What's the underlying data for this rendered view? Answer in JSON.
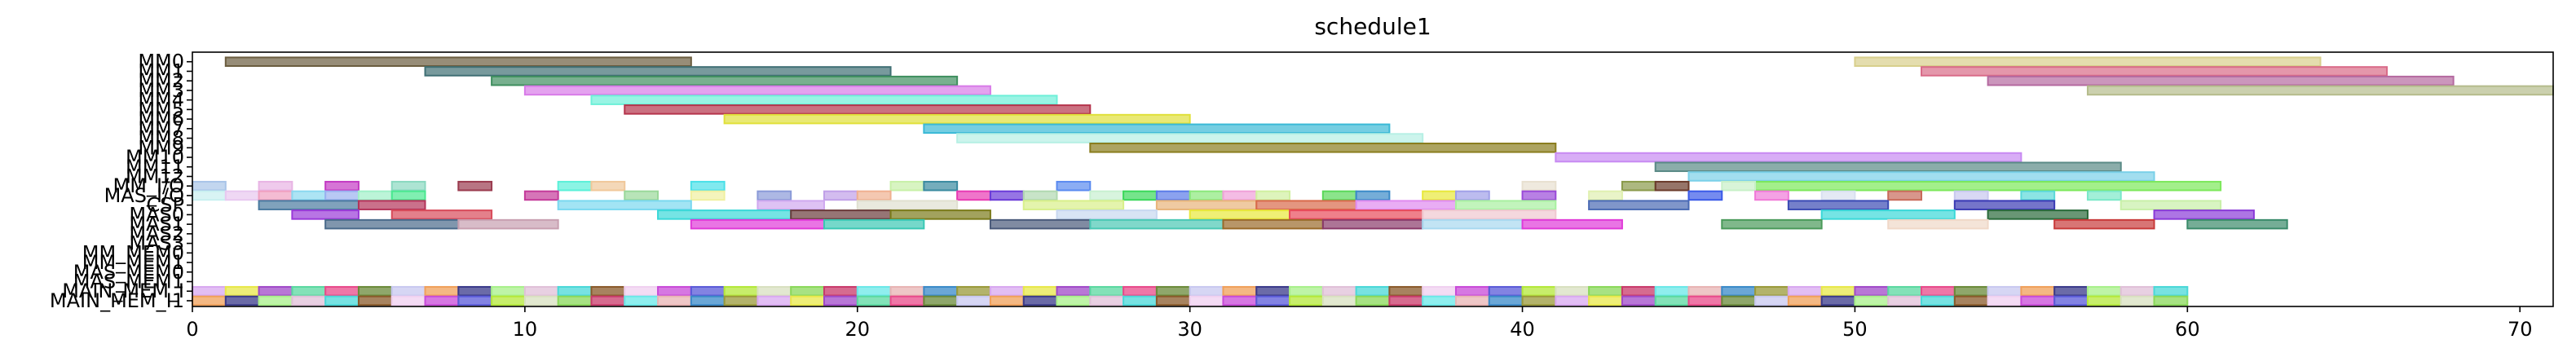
{
  "chart_data": {
    "type": "gantt",
    "title": "schedule1",
    "xlabel": "",
    "ylabel": "",
    "xlim": [
      0,
      71
    ],
    "xticks": [
      0,
      10,
      20,
      30,
      40,
      50,
      60,
      70
    ],
    "grid": false,
    "rows": [
      "MM0",
      "MM1",
      "MM2",
      "MM3",
      "MM4",
      "MM5",
      "MM6",
      "MM7",
      "MM8",
      "MM9",
      "MM10",
      "MM11",
      "MM12",
      "MM_I/O",
      "MAS_I/O",
      "CSP",
      "MAS0",
      "MAS1",
      "MAS2",
      "MAS3",
      "MM_MEM0",
      "MM_MEM1",
      "MAS_MEM0",
      "MAS_MEM1",
      "MAIN_MEM_I",
      "MAIN_MEM_I1"
    ],
    "tasks": [
      {
        "row": "MM0",
        "start": 1,
        "end": 15,
        "color": "#6b5d3f"
      },
      {
        "row": "MM0",
        "start": 50,
        "end": 64,
        "color": "#d8cf8c"
      },
      {
        "row": "MM1",
        "start": 7,
        "end": 21,
        "color": "#3f6f74"
      },
      {
        "row": "MM1",
        "start": 52,
        "end": 66,
        "color": "#d96b88"
      },
      {
        "row": "MM2",
        "start": 9,
        "end": 23,
        "color": "#3f8f5f"
      },
      {
        "row": "MM2",
        "start": 54,
        "end": 68,
        "color": "#b56aa0"
      },
      {
        "row": "MM3",
        "start": 10,
        "end": 24,
        "color": "#d87ae8"
      },
      {
        "row": "MM3",
        "start": 57,
        "end": 71,
        "color": "#b5bc8c"
      },
      {
        "row": "MM4",
        "start": 12,
        "end": 26,
        "color": "#6ef0d8"
      },
      {
        "row": "MM5",
        "start": 13,
        "end": 27,
        "color": "#b5344c"
      },
      {
        "row": "MM6",
        "start": 16,
        "end": 30,
        "color": "#e0e03a"
      },
      {
        "row": "MM7",
        "start": 22,
        "end": 36,
        "color": "#3ab9d6"
      },
      {
        "row": "MM8",
        "start": 23,
        "end": 37,
        "color": "#b6f0e4"
      },
      {
        "row": "MM9",
        "start": 27,
        "end": 41,
        "color": "#8a7d1e"
      },
      {
        "row": "MM10",
        "start": 41,
        "end": 55,
        "color": "#c88af2"
      },
      {
        "row": "MM11",
        "start": 44,
        "end": 58,
        "color": "#5a8a86"
      },
      {
        "row": "MM12",
        "start": 45,
        "end": 59,
        "color": "#7ad0e8"
      },
      {
        "row": "MM_I/O",
        "start": 47,
        "end": 61,
        "color": "#7ce85a"
      },
      {
        "row": "MM_I/O",
        "start": 0,
        "end": 1,
        "color": "#a8c4e8"
      },
      {
        "row": "MM_I/O",
        "start": 2,
        "end": 3,
        "color": "#e8b4e4"
      },
      {
        "row": "MM_I/O",
        "start": 4,
        "end": 5,
        "color": "#c43ac4"
      },
      {
        "row": "MM_I/O",
        "start": 6,
        "end": 7,
        "color": "#8ad8c0"
      },
      {
        "row": "MM_I/O",
        "start": 8,
        "end": 9,
        "color": "#9a3a4e"
      },
      {
        "row": "MM_I/O",
        "start": 11,
        "end": 12,
        "color": "#5af0d8"
      },
      {
        "row": "MM_I/O",
        "start": 12,
        "end": 13,
        "color": "#f0c89a"
      },
      {
        "row": "MM_I/O",
        "start": 15,
        "end": 16,
        "color": "#4ae0e8"
      },
      {
        "row": "MM_I/O",
        "start": 21,
        "end": 22,
        "color": "#c8f0a8"
      },
      {
        "row": "MM_I/O",
        "start": 22,
        "end": 23,
        "color": "#3a8aa0"
      },
      {
        "row": "MM_I/O",
        "start": 26,
        "end": 27,
        "color": "#5a8af0"
      },
      {
        "row": "MM_I/O",
        "start": 40,
        "end": 41,
        "color": "#e8e0d0"
      },
      {
        "row": "MM_I/O",
        "start": 43,
        "end": 44,
        "color": "#8a9a4a"
      },
      {
        "row": "MM_I/O",
        "start": 44,
        "end": 45,
        "color": "#6a3a2a"
      },
      {
        "row": "MM_I/O",
        "start": 46,
        "end": 47,
        "color": "#c8f0c8"
      },
      {
        "row": "MAS_I/O",
        "start": 0,
        "end": 1,
        "color": "#c8f0f0"
      },
      {
        "row": "MAS_I/O",
        "start": 1,
        "end": 2,
        "color": "#e8c8f0"
      },
      {
        "row": "MAS_I/O",
        "start": 2,
        "end": 3,
        "color": "#f0a0c0"
      },
      {
        "row": "MAS_I/O",
        "start": 3,
        "end": 4,
        "color": "#8ad8f0"
      },
      {
        "row": "MAS_I/O",
        "start": 4,
        "end": 5,
        "color": "#9ab0f0"
      },
      {
        "row": "MAS_I/O",
        "start": 5,
        "end": 6,
        "color": "#a0f0c8"
      },
      {
        "row": "MAS_I/O",
        "start": 6,
        "end": 7,
        "color": "#4ae890"
      },
      {
        "row": "MAS_I/O",
        "start": 10,
        "end": 11,
        "color": "#c43a9a"
      },
      {
        "row": "MAS_I/O",
        "start": 13,
        "end": 14,
        "color": "#9ad89a"
      },
      {
        "row": "MAS_I/O",
        "start": 15,
        "end": 16,
        "color": "#f0f0a0"
      },
      {
        "row": "MAS_I/O",
        "start": 17,
        "end": 18,
        "color": "#8a9ad8"
      },
      {
        "row": "MAS_I/O",
        "start": 19,
        "end": 20,
        "color": "#c0a0e8"
      },
      {
        "row": "MAS_I/O",
        "start": 20,
        "end": 21,
        "color": "#f0b090"
      },
      {
        "row": "MAS_I/O",
        "start": 23,
        "end": 24,
        "color": "#e83ab4"
      },
      {
        "row": "MAS_I/O",
        "start": 24,
        "end": 25,
        "color": "#6a3ad8"
      },
      {
        "row": "MAS_I/O",
        "start": 25,
        "end": 26,
        "color": "#b0d8b0"
      },
      {
        "row": "MAS_I/O",
        "start": 27,
        "end": 28,
        "color": "#c8f0d0"
      },
      {
        "row": "MAS_I/O",
        "start": 28,
        "end": 29,
        "color": "#3ad85a"
      },
      {
        "row": "MAS_I/O",
        "start": 29,
        "end": 30,
        "color": "#5a7ae8"
      },
      {
        "row": "MAS_I/O",
        "start": 30,
        "end": 31,
        "color": "#8ae87a"
      },
      {
        "row": "MAS_I/O",
        "start": 31,
        "end": 32,
        "color": "#f0a0d8"
      },
      {
        "row": "MAS_I/O",
        "start": 32,
        "end": 33,
        "color": "#d0f0a0"
      },
      {
        "row": "MAS_I/O",
        "start": 34,
        "end": 35,
        "color": "#5ad85a"
      },
      {
        "row": "MAS_I/O",
        "start": 35,
        "end": 36,
        "color": "#3a8ac8"
      },
      {
        "row": "MAS_I/O",
        "start": 37,
        "end": 38,
        "color": "#e8e83a"
      },
      {
        "row": "MAS_I/O",
        "start": 38,
        "end": 39,
        "color": "#a0a0e8"
      },
      {
        "row": "MAS_I/O",
        "start": 40,
        "end": 41,
        "color": "#9a4ad8"
      },
      {
        "row": "MAS_I/O",
        "start": 42,
        "end": 43,
        "color": "#e0f0b0"
      },
      {
        "row": "MAS_I/O",
        "start": 45,
        "end": 46,
        "color": "#3a5ae8"
      },
      {
        "row": "MAS_I/O",
        "start": 47,
        "end": 48,
        "color": "#f07ad8"
      },
      {
        "row": "MAS_I/O",
        "start": 49,
        "end": 50,
        "color": "#d8e0f0"
      },
      {
        "row": "MAS_I/O",
        "start": 51,
        "end": 52,
        "color": "#c86a5a"
      },
      {
        "row": "MAS_I/O",
        "start": 53,
        "end": 54,
        "color": "#c8c8f0"
      },
      {
        "row": "MAS_I/O",
        "start": 55,
        "end": 56,
        "color": "#5ad8d8"
      },
      {
        "row": "MAS_I/O",
        "start": 57,
        "end": 58,
        "color": "#7ae8c8"
      },
      {
        "row": "CSP",
        "start": 2,
        "end": 5,
        "color": "#4a7aa0"
      },
      {
        "row": "CSP",
        "start": 5,
        "end": 7,
        "color": "#b4345a"
      },
      {
        "row": "CSP",
        "start": 11,
        "end": 15,
        "color": "#7ad8f0"
      },
      {
        "row": "CSP",
        "start": 17,
        "end": 19,
        "color": "#d0a8f0"
      },
      {
        "row": "CSP",
        "start": 20,
        "end": 23,
        "color": "#e0e0d0"
      },
      {
        "row": "CSP",
        "start": 25,
        "end": 28,
        "color": "#d8f08a"
      },
      {
        "row": "CSP",
        "start": 29,
        "end": 32,
        "color": "#e8b47a"
      },
      {
        "row": "CSP",
        "start": 32,
        "end": 35,
        "color": "#d86a4a"
      },
      {
        "row": "CSP",
        "start": 35,
        "end": 38,
        "color": "#e08af0"
      },
      {
        "row": "CSP",
        "start": 38,
        "end": 41,
        "color": "#a8f0a0"
      },
      {
        "row": "CSP",
        "start": 42,
        "end": 45,
        "color": "#4a6ab4"
      },
      {
        "row": "CSP",
        "start": 48,
        "end": 51,
        "color": "#3a4ab4"
      },
      {
        "row": "CSP",
        "start": 53,
        "end": 56,
        "color": "#3a3ab4"
      },
      {
        "row": "CSP",
        "start": 58,
        "end": 61,
        "color": "#c8f0a8"
      },
      {
        "row": "MAS0",
        "start": 3,
        "end": 5,
        "color": "#9a3ad8"
      },
      {
        "row": "MAS0",
        "start": 6,
        "end": 9,
        "color": "#d84a5a"
      },
      {
        "row": "MAS0",
        "start": 14,
        "end": 18,
        "color": "#3ad8d8"
      },
      {
        "row": "MAS0",
        "start": 18,
        "end": 21,
        "color": "#6a3a3a"
      },
      {
        "row": "MAS0",
        "start": 21,
        "end": 24,
        "color": "#7a7a1a"
      },
      {
        "row": "MAS0",
        "start": 26,
        "end": 29,
        "color": "#c8d8f0"
      },
      {
        "row": "MAS0",
        "start": 30,
        "end": 33,
        "color": "#e8e83a"
      },
      {
        "row": "MAS0",
        "start": 33,
        "end": 37,
        "color": "#e84a5a"
      },
      {
        "row": "MAS0",
        "start": 37,
        "end": 41,
        "color": "#f0c8d0"
      },
      {
        "row": "MAS0",
        "start": 49,
        "end": 53,
        "color": "#3ad8d8"
      },
      {
        "row": "MAS0",
        "start": 54,
        "end": 57,
        "color": "#2a6a3a"
      },
      {
        "row": "MAS0",
        "start": 59,
        "end": 62,
        "color": "#8a3ad8"
      },
      {
        "row": "MAS1",
        "start": 4,
        "end": 8,
        "color": "#4a6a8a"
      },
      {
        "row": "MAS1",
        "start": 8,
        "end": 11,
        "color": "#c8a0b0"
      },
      {
        "row": "MAS1",
        "start": 15,
        "end": 19,
        "color": "#e03ad8"
      },
      {
        "row": "MAS1",
        "start": 19,
        "end": 22,
        "color": "#3ac8b4"
      },
      {
        "row": "MAS1",
        "start": 24,
        "end": 27,
        "color": "#4a5a7a"
      },
      {
        "row": "MAS1",
        "start": 27,
        "end": 31,
        "color": "#4ac8b4"
      },
      {
        "row": "MAS1",
        "start": 31,
        "end": 34,
        "color": "#9a6a2a"
      },
      {
        "row": "MAS1",
        "start": 34,
        "end": 37,
        "color": "#8a3a6a"
      },
      {
        "row": "MAS1",
        "start": 37,
        "end": 40,
        "color": "#a8d8f0"
      },
      {
        "row": "MAS1",
        "start": 40,
        "end": 43,
        "color": "#e03ad8"
      },
      {
        "row": "MAS1",
        "start": 46,
        "end": 49,
        "color": "#4a9a5a"
      },
      {
        "row": "MAS1",
        "start": 51,
        "end": 54,
        "color": "#f0d8c8"
      },
      {
        "row": "MAS1",
        "start": 56,
        "end": 59,
        "color": "#c83a3a"
      },
      {
        "row": "MAS1",
        "start": 60,
        "end": 63,
        "color": "#3a8a6a"
      }
    ],
    "mem_rows": [
      "MAIN_MEM_I",
      "MAIN_MEM_I1"
    ],
    "mem_colors": [
      "#d8a8f0",
      "#e8e84a",
      "#a04ac8",
      "#5ad8a0",
      "#e84a8a",
      "#6a8a3a",
      "#c8c8f0",
      "#f0a05a",
      "#3a3a8a",
      "#a8f08a",
      "#e0c0d8",
      "#4ad8d8",
      "#8a5a2a",
      "#f0d0f0",
      "#c84ad8",
      "#5a5ad8",
      "#b4e83a",
      "#d8e0c0",
      "#8ad85a",
      "#c83a6a",
      "#6ae8e8",
      "#e8b4b4",
      "#3a8ac8",
      "#9a9a3a"
    ],
    "mem_count": 60
  }
}
